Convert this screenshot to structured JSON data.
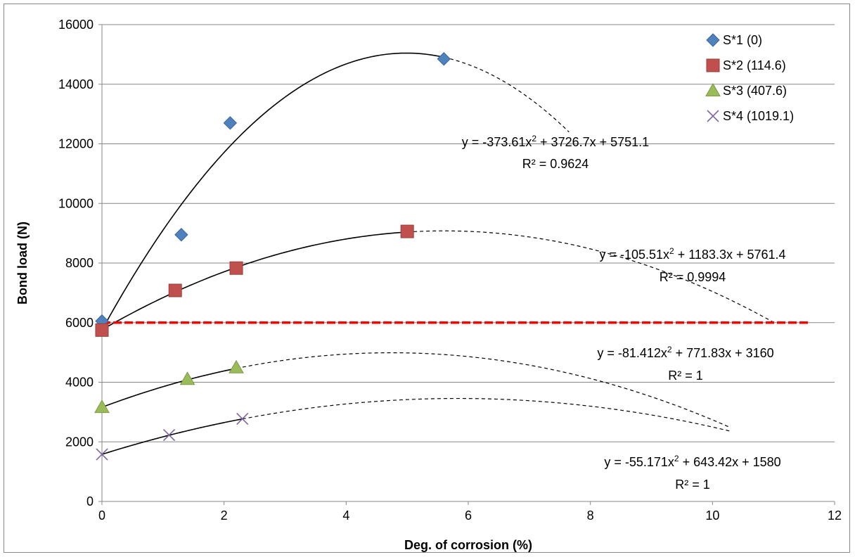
{
  "chart_data": {
    "type": "scatter",
    "title": "",
    "xlabel": "Deg. of corrosion (%)",
    "ylabel": "Bond load (N)",
    "xlim": [
      0,
      12
    ],
    "ylim": [
      0,
      16000
    ],
    "xticks": [
      0,
      2,
      4,
      6,
      8,
      10,
      12
    ],
    "yticks": [
      0,
      2000,
      4000,
      6000,
      8000,
      10000,
      12000,
      14000,
      16000
    ],
    "grid": "horizontal",
    "legend_position": "top-right",
    "threshold_line": {
      "y": 6000,
      "x_range": [
        0,
        11.6
      ],
      "color": "#ff0000",
      "style": "dashed"
    },
    "series": [
      {
        "name": "S*1 (0)",
        "marker": "diamond",
        "color": "#4f81bd",
        "x": [
          0,
          1.3,
          2.1,
          5.6
        ],
        "y": [
          6050,
          8950,
          12700,
          14850
        ],
        "trend": {
          "a": -373.61,
          "b": 3726.7,
          "c": 5751.1,
          "solid_range": [
            0,
            5.6
          ],
          "dashed_range": [
            5.6,
            7.65
          ]
        },
        "equation": "y = -373.61x² + 3726.7x + 5751.1",
        "r2": "R² = 0.9624"
      },
      {
        "name": "S*2 (114.6)",
        "marker": "square",
        "color": "#c0504d",
        "x": [
          0,
          1.2,
          2.2,
          5
        ],
        "y": [
          5750,
          7080,
          7830,
          9060
        ],
        "trend": {
          "a": -105.51,
          "b": 1183.3,
          "c": 5761.4,
          "solid_range": [
            0,
            5
          ],
          "dashed_range": [
            5,
            11
          ]
        },
        "equation": "y = -105.51x² + 1183.3x + 5761.4",
        "r2": "R² = 0.9994"
      },
      {
        "name": "S*3 (407.6)",
        "marker": "triangle",
        "color": "#9bbb59",
        "x": [
          0,
          1.4,
          2.2
        ],
        "y": [
          3160,
          4100,
          4490
        ],
        "trend": {
          "a": -81.412,
          "b": 771.83,
          "c": 3160,
          "solid_range": [
            0,
            2.2
          ],
          "dashed_range": [
            2.2,
            10.3
          ]
        },
        "equation": "y = -81.412x² + 771.83x + 3160",
        "r2": "R² = 1"
      },
      {
        "name": "S*4 (1019.1)",
        "marker": "x",
        "color": "#8064a2",
        "x": [
          0,
          1.1,
          2.3
        ],
        "y": [
          1580,
          2230,
          2770
        ],
        "trend": {
          "a": -55.171,
          "b": 643.42,
          "c": 1580,
          "solid_range": [
            0,
            2.3
          ],
          "dashed_range": [
            2.3,
            10.3
          ]
        },
        "equation": "y = -55.171x² + 643.42x + 1580",
        "r2": "R² = 1"
      }
    ]
  }
}
